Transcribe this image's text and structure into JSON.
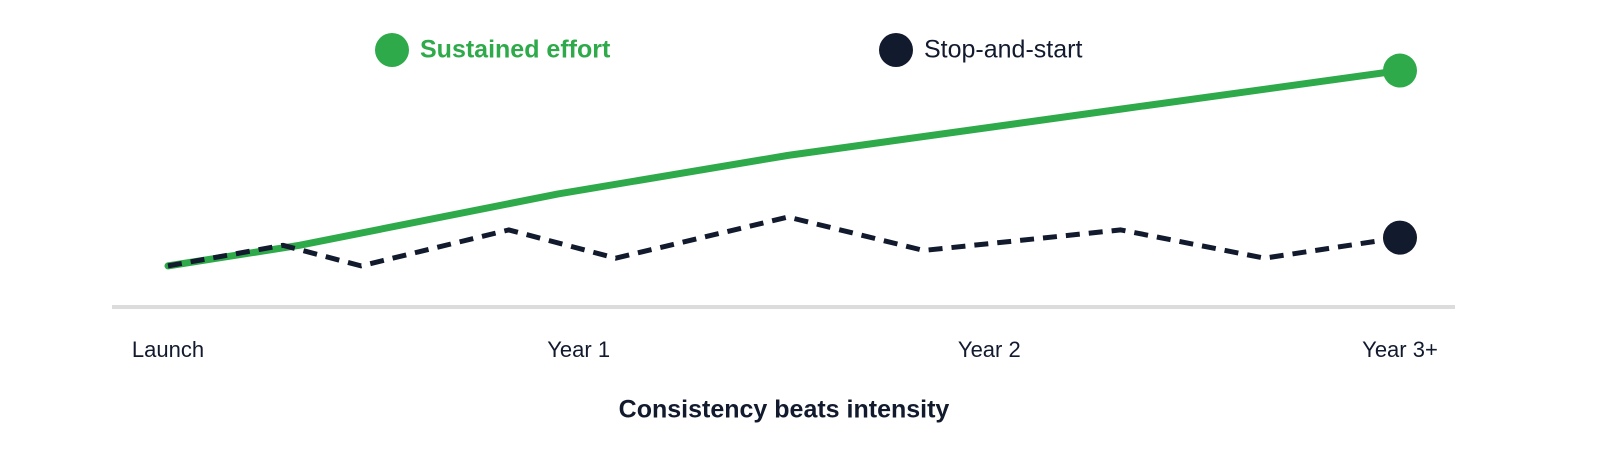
{
  "chart_data": {
    "type": "line",
    "x_label": "Consistency beats intensity",
    "xlim": [
      0,
      3
    ],
    "ylim": [
      0,
      100
    ],
    "xticks": [
      {
        "value": 0,
        "label": "Launch"
      },
      {
        "value": 1,
        "label": "Year 1"
      },
      {
        "value": 2,
        "label": "Year 2"
      },
      {
        "value": 3,
        "label": "Year 3+"
      }
    ],
    "legend": "top",
    "series": [
      {
        "name": "Sustained effort",
        "color": "#2eaa4a",
        "line_style": "solid",
        "x": [
          0,
          0.32,
          0.95,
          1.51,
          2.32,
          3
        ],
        "values": [
          16,
          24,
          44,
          59,
          77,
          92
        ]
      },
      {
        "name": "Stop-and-start",
        "color": "#121a2e",
        "line_style": "dashed",
        "x": [
          0,
          0.28,
          0.47,
          0.83,
          1.09,
          1.51,
          1.84,
          2.32,
          2.67,
          3
        ],
        "values": [
          16,
          24,
          16,
          30,
          19,
          35,
          22,
          30,
          19,
          27
        ]
      }
    ]
  }
}
